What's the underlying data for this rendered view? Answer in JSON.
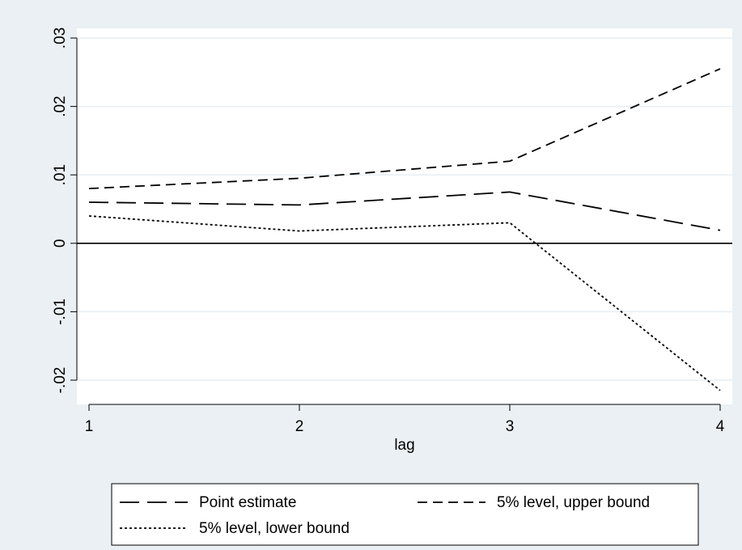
{
  "chart_data": {
    "type": "line",
    "title": "",
    "xlabel": "lag",
    "ylabel": "",
    "x": [
      1,
      2,
      3,
      4
    ],
    "xlim": [
      1,
      4
    ],
    "ylim": [
      -0.02,
      0.03
    ],
    "x_ticks": [
      {
        "value": 1,
        "label": "1"
      },
      {
        "value": 2,
        "label": "2"
      },
      {
        "value": 3,
        "label": "3"
      },
      {
        "value": 4,
        "label": "4"
      }
    ],
    "y_ticks": [
      {
        "value": -0.02,
        "label": "-.02"
      },
      {
        "value": -0.01,
        "label": "-.01"
      },
      {
        "value": 0,
        "label": "0"
      },
      {
        "value": 0.01,
        "label": ".01"
      },
      {
        "value": 0.02,
        "label": ".02"
      },
      {
        "value": 0.03,
        "label": ".03"
      }
    ],
    "grid": true,
    "reference_line_y": 0,
    "legend_placement": "bottom",
    "series": [
      {
        "name": "Point estimate",
        "values": [
          0.006,
          0.0056,
          0.0075,
          0.0019
        ],
        "dash": "long-dash",
        "color": "#000000"
      },
      {
        "name": "5% level, upper bound",
        "values": [
          0.008,
          0.0095,
          0.012,
          0.0255
        ],
        "dash": "dash",
        "color": "#000000"
      },
      {
        "name": "5% level, lower bound",
        "values": [
          0.004,
          0.0018,
          0.003,
          -0.0215
        ],
        "dash": "dot",
        "color": "#000000"
      }
    ]
  }
}
